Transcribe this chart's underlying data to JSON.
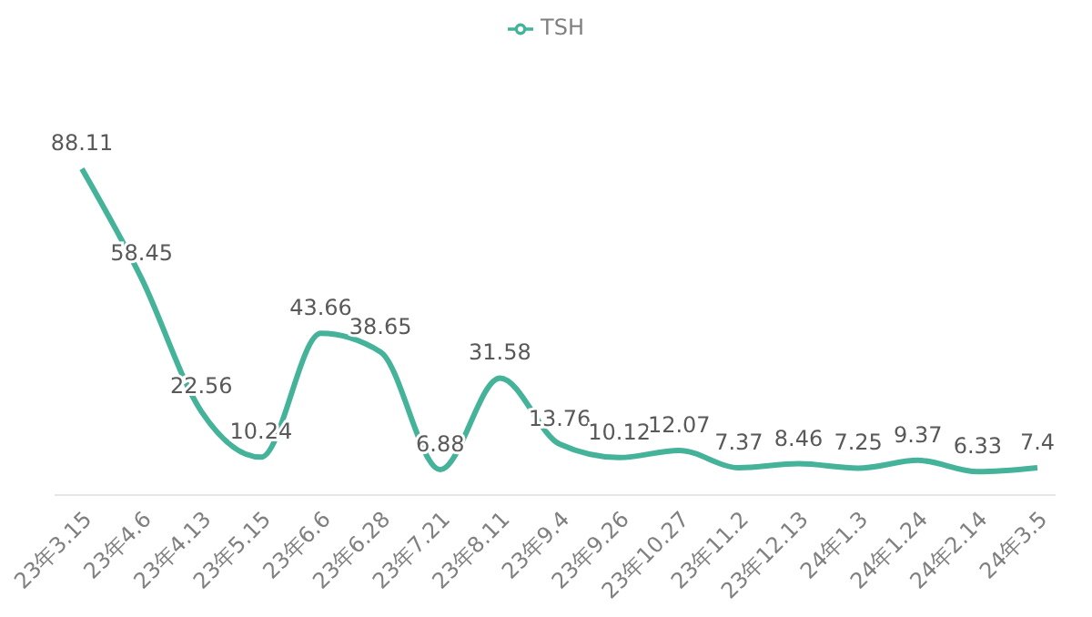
{
  "chart_data": {
    "type": "line",
    "categories": [
      "23年3.15",
      "23年4.6",
      "23年4.13",
      "23年5.15",
      "23年6.6",
      "23年6.28",
      "23年7.21",
      "23年8.11",
      "23年9.4",
      "23年9.26",
      "23年10.27",
      "23年11.2",
      "23年12.13",
      "24年1.3",
      "24年1.24",
      "24年2.14",
      "24年3.5"
    ],
    "series": [
      {
        "name": "TSH",
        "color": "#45b29a",
        "values": [
          88.11,
          58.45,
          22.56,
          10.24,
          43.66,
          38.65,
          6.88,
          31.58,
          13.76,
          10.12,
          12.07,
          7.37,
          8.46,
          7.25,
          9.37,
          6.33,
          7.4
        ]
      }
    ],
    "data_labels": true,
    "legend": "top",
    "marker": "none"
  }
}
